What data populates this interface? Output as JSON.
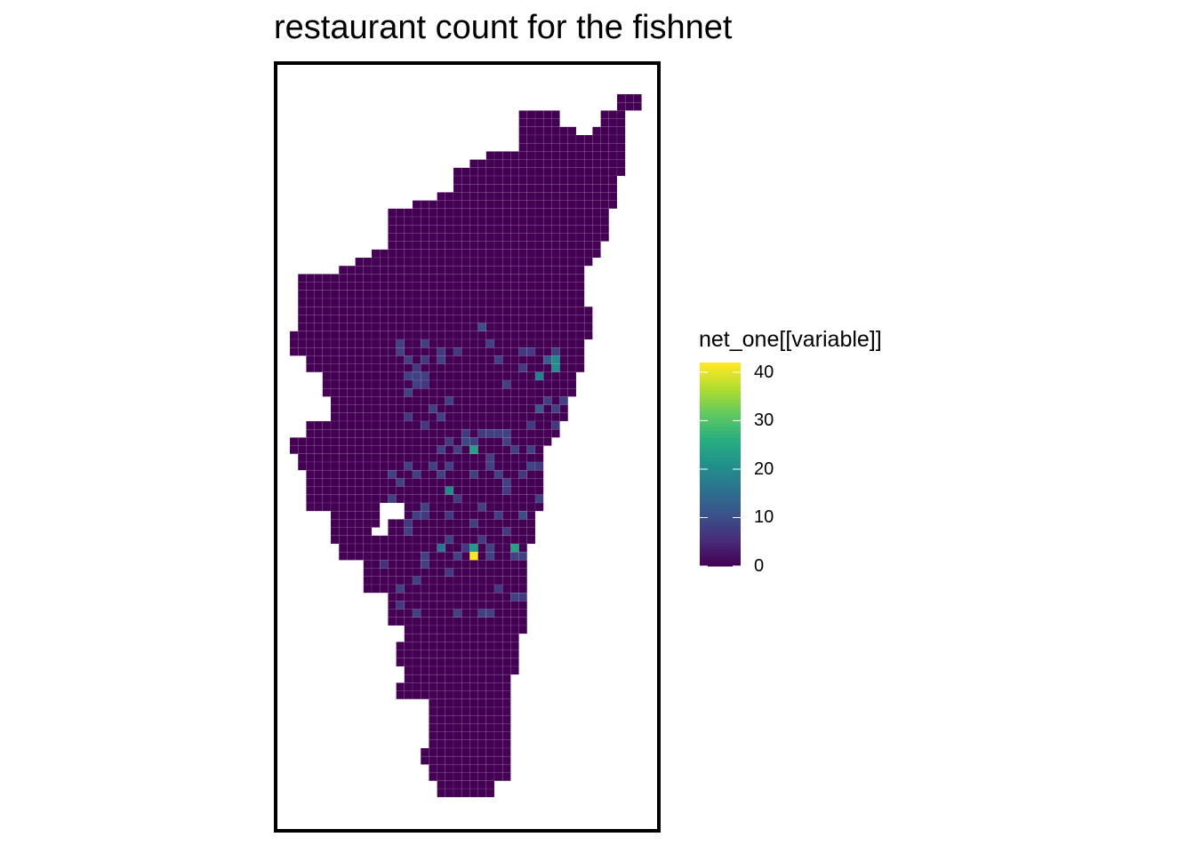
{
  "title": "restaurant count for the fishnet",
  "legend": {
    "title": "net_one[[variable]]",
    "ticks": [
      {
        "label": "0",
        "value": 0
      },
      {
        "label": "10",
        "value": 10
      },
      {
        "label": "20",
        "value": 20
      },
      {
        "label": "30",
        "value": 30
      },
      {
        "label": "40",
        "value": 40
      }
    ],
    "range": [
      0,
      42
    ],
    "palette": [
      "#440154",
      "#472d7b",
      "#3b528b",
      "#2c728e",
      "#21918c",
      "#28ae80",
      "#5ec962",
      "#addc30",
      "#fde725"
    ]
  },
  "colors": {
    "background": "#ffffff",
    "frame": "#000000",
    "cell_border": "#ffffff"
  },
  "map_data": {
    "type": "choropleth-grid",
    "variable": "restaurant count",
    "min": 0,
    "max": 42
  }
}
